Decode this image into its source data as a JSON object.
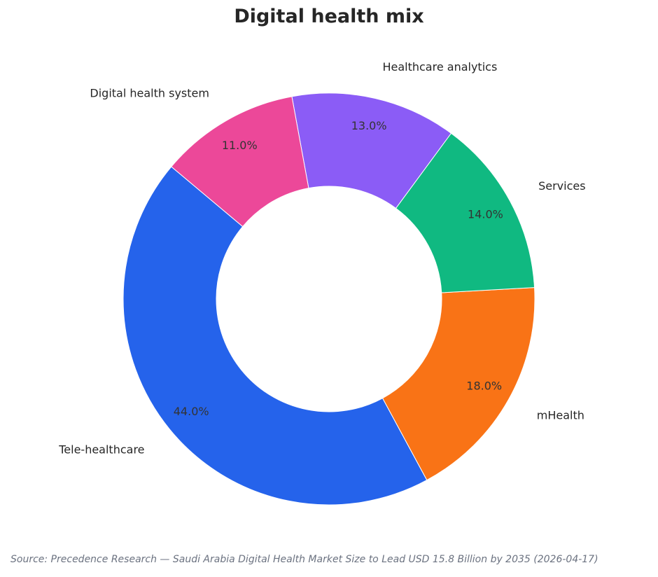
{
  "chart_data": {
    "type": "pie",
    "title": "Digital health mix",
    "variant": "donut",
    "start_angle_deg": 140,
    "direction": "counterclockwise",
    "legend": "none",
    "slices": [
      {
        "label": "Tele-healthcare",
        "value": 44.0,
        "pct_label": "44.0%",
        "color": "#2563eb"
      },
      {
        "label": "mHealth",
        "value": 18.0,
        "pct_label": "18.0%",
        "color": "#f97316"
      },
      {
        "label": "Services",
        "value": 14.0,
        "pct_label": "14.0%",
        "color": "#10b981"
      },
      {
        "label": "Healthcare analytics",
        "value": 13.0,
        "pct_label": "13.0%",
        "color": "#8b5cf6"
      },
      {
        "label": "Digital health system",
        "value": 11.0,
        "pct_label": "11.0%",
        "color": "#ec4899"
      }
    ]
  },
  "source": "Source: Precedence Research — Saudi Arabia Digital Health Market Size to Lead USD 15.8 Billion by 2035 (2026-04-17)"
}
